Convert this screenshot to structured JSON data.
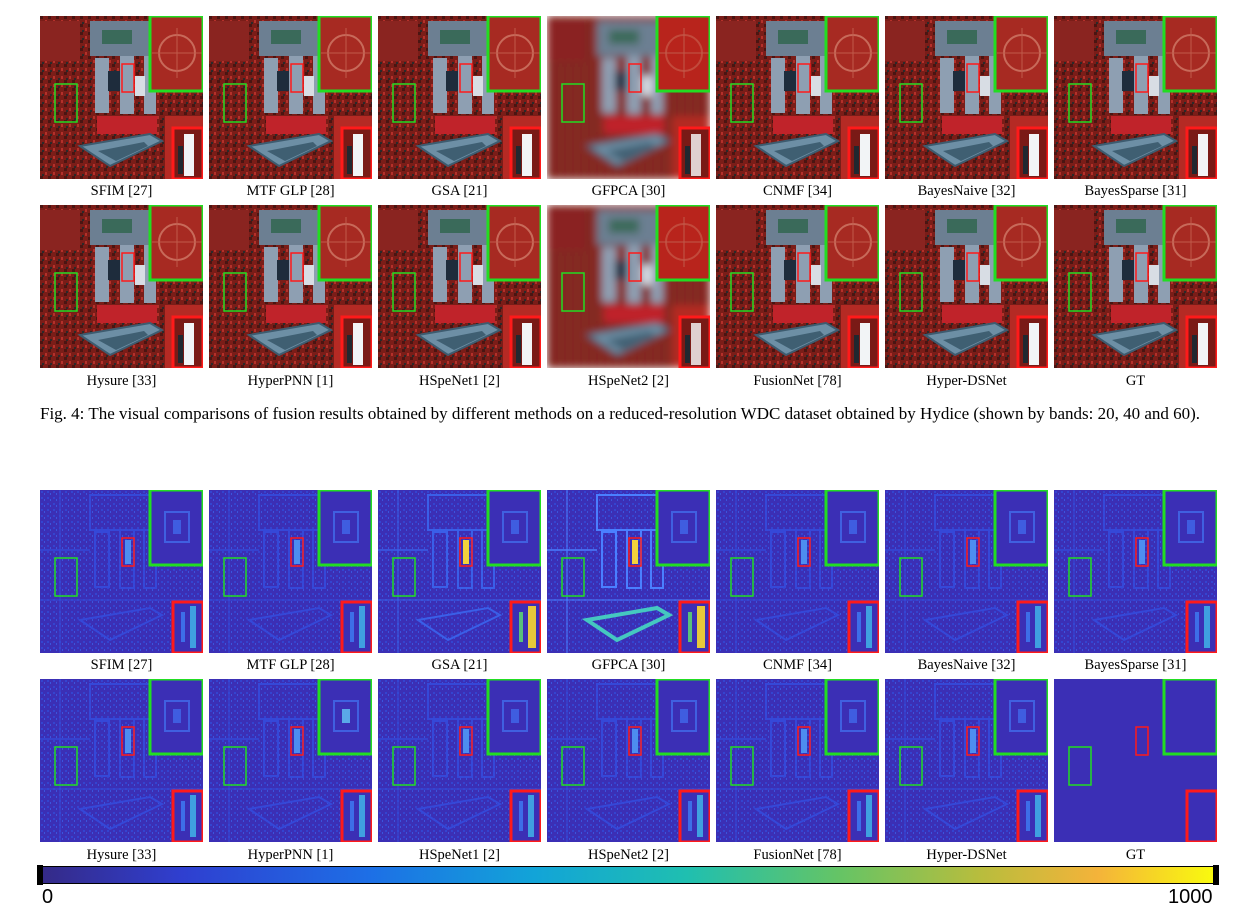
{
  "figure4": {
    "row1_labels": [
      "SFIM [27]",
      "MTF GLP [28]",
      "GSA [21]",
      "GFPCA [30]",
      "CNMF [34]",
      "BayesNaive [32]",
      "BayesSparse [31]"
    ],
    "row2_labels": [
      "Hysure [33]",
      "HyperPNN [1]",
      "HSpeNet1 [2]",
      "HSpeNet2 [2]",
      "FusionNet [78]",
      "Hyper-DSNet",
      "GT"
    ],
    "caption": "Fig. 4: The visual comparisons of fusion results obtained by different methods on a reduced-resolution WDC dataset obtained by Hydice (shown by bands: 20, 40 and 60)."
  },
  "figure5": {
    "row1_labels": [
      "SFIM [27]",
      "MTF GLP [28]",
      "GSA [21]",
      "GFPCA [30]",
      "CNMF [34]",
      "BayesNaive [32]",
      "BayesSparse [31]"
    ],
    "row2_labels": [
      "Hysure [33]",
      "HyperPNN [1]",
      "HSpeNet1 [2]",
      "HSpeNet2 [2]",
      "FusionNet [78]",
      "Hyper-DSNet",
      "GT"
    ],
    "colorbar": {
      "min_label": "0",
      "max_label": "1000",
      "colormap": "parula"
    }
  },
  "colors": {
    "zoom_green": "#22dd22",
    "zoom_red": "#ff1a1a",
    "error_background": "#3b2fb5"
  }
}
